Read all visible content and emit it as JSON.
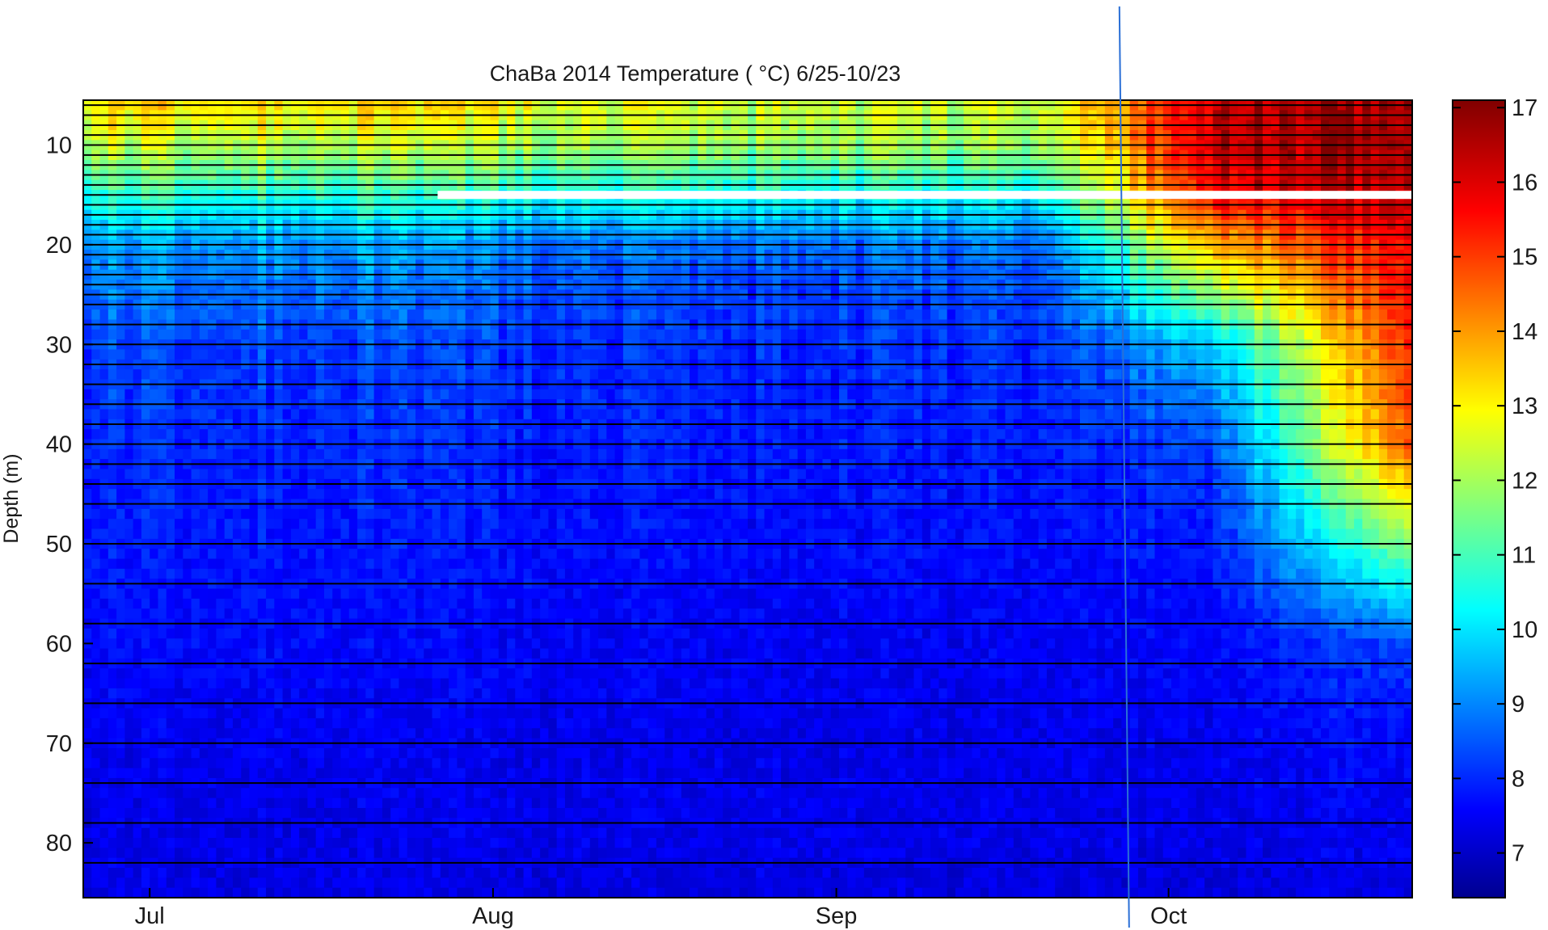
{
  "chart_data": {
    "type": "heatmap",
    "title": "ChaBa 2014 Temperature (  °C) 6/25-10/23",
    "xlabel": "",
    "ylabel": "Depth (m)",
    "x_tick_labels": [
      "Jul",
      "Aug",
      "Sep",
      "Oct"
    ],
    "x_tick_dates": [
      "2014-07-01",
      "2014-08-01",
      "2014-09-01",
      "2014-10-01"
    ],
    "x_range": [
      "2014-06-25",
      "2014-10-23"
    ],
    "y_ticks": [
      10,
      20,
      30,
      40,
      50,
      60,
      70,
      80
    ],
    "ylim": [
      5.5,
      85.5
    ],
    "y_reversed": true,
    "colorbar": {
      "ticks": [
        7,
        8,
        9,
        10,
        11,
        12,
        13,
        14,
        15,
        16,
        17
      ],
      "range": [
        6.4,
        17.1
      ],
      "colormap": "jet"
    },
    "sensor_depths": [
      6,
      7,
      8,
      9,
      10,
      11,
      12,
      13,
      14,
      15,
      16,
      17,
      18,
      19,
      20,
      21,
      22,
      23,
      24,
      25,
      26,
      28,
      30,
      32,
      34,
      36,
      38,
      40,
      42,
      44,
      46,
      50,
      54,
      58,
      62,
      66,
      70,
      74,
      78,
      82
    ],
    "data_gap": {
      "depth_m": 15,
      "from": "2014-07-27",
      "to": "2014-10-23"
    },
    "marker_line": {
      "date": "2014-09-27"
    },
    "temperature_profiles": {
      "depths_m": [
        6,
        10,
        15,
        20,
        25,
        30,
        40,
        50,
        60,
        70,
        80,
        85
      ],
      "early_july": [
        13.5,
        12.5,
        11.0,
        9.5,
        9.0,
        8.5,
        8.2,
        8.0,
        7.8,
        7.6,
        7.5,
        7.5
      ],
      "august": [
        12.5,
        12.0,
        10.5,
        8.8,
        8.3,
        8.1,
        7.9,
        7.8,
        7.6,
        7.5,
        7.5,
        7.4
      ],
      "september": [
        12.5,
        12.0,
        10.5,
        9.0,
        8.5,
        8.2,
        8.0,
        7.8,
        7.6,
        7.5,
        7.5,
        7.4
      ],
      "early_october": [
        16.5,
        16.5,
        16.0,
        14.0,
        12.0,
        10.0,
        8.5,
        8.0,
        7.8,
        7.6,
        7.5,
        7.4
      ],
      "late_october": [
        16.8,
        16.8,
        16.5,
        16.0,
        15.8,
        15.5,
        15.0,
        12.0,
        8.5,
        7.8,
        7.6,
        7.5
      ]
    },
    "grid": false,
    "legend": "colorbar-right"
  }
}
